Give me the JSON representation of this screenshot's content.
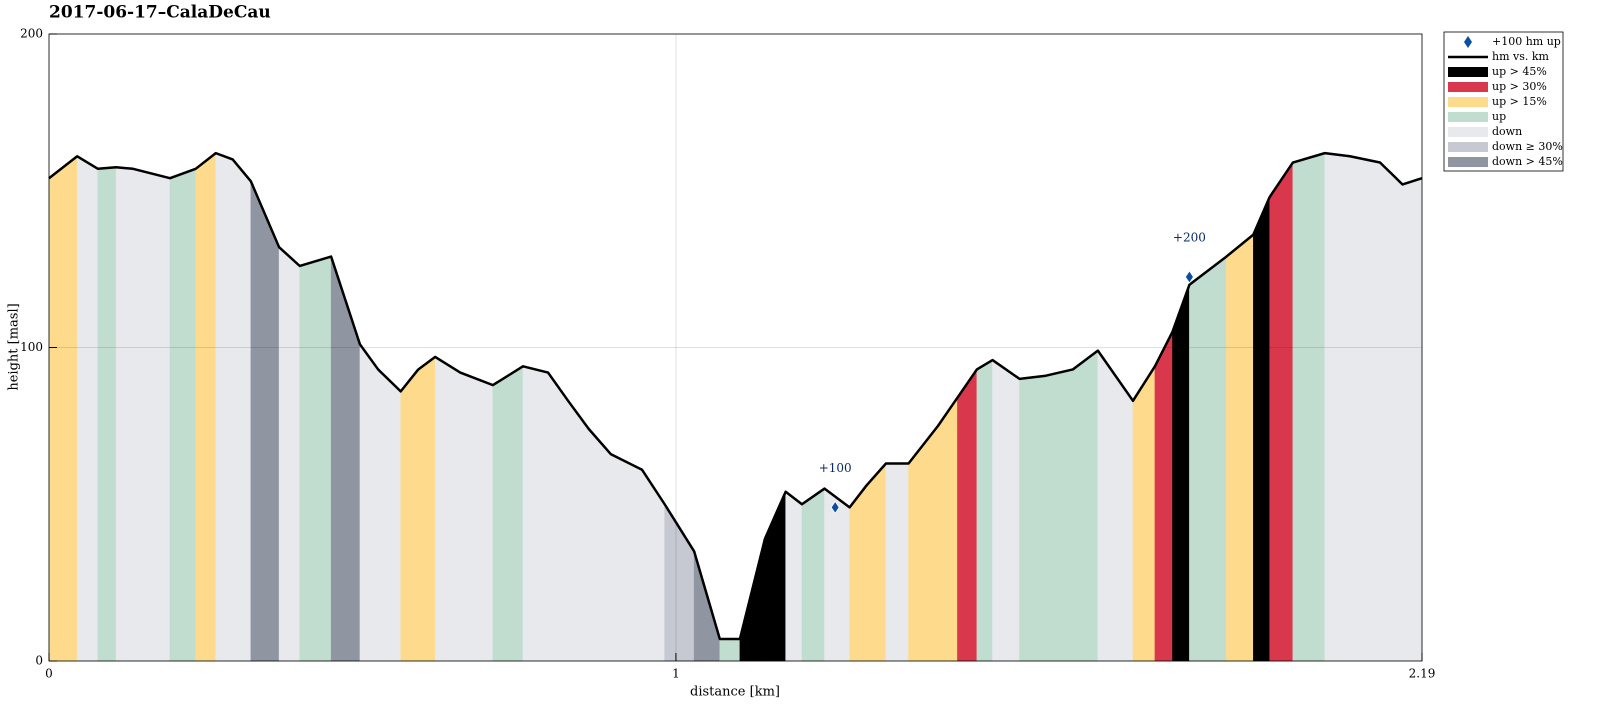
{
  "chart_data": {
    "type": "profile",
    "title": "2017-06-17–CalaDeCau",
    "xlabel": "distance [km]",
    "ylabel": "height [masl]",
    "xlim": [
      0,
      2.19
    ],
    "ylim": [
      0,
      200
    ],
    "xticks": [
      0,
      1,
      2.19
    ],
    "yticks": [
      0,
      100,
      200
    ],
    "grid": true,
    "legend_position": "outside-top-right",
    "x": [
      0,
      0.045,
      0.078,
      0.107,
      0.134,
      0.193,
      0.234,
      0.266,
      0.293,
      0.322,
      0.367,
      0.4,
      0.45,
      0.496,
      0.525,
      0.561,
      0.589,
      0.616,
      0.656,
      0.708,
      0.756,
      0.796,
      0.828,
      0.861,
      0.896,
      0.946,
      0.982,
      1.029,
      1.07,
      1.102,
      1.142,
      1.175,
      1.201,
      1.237,
      1.277,
      1.304,
      1.335,
      1.371,
      1.418,
      1.449,
      1.48,
      1.505,
      1.548,
      1.59,
      1.633,
      1.673,
      1.729,
      1.764,
      1.792,
      1.819,
      1.878,
      1.921,
      1.947,
      1.984,
      2.035,
      2.075,
      2.123,
      2.159,
      2.19
    ],
    "y": [
      154,
      161,
      157,
      157.5,
      157,
      154,
      157,
      162,
      160,
      153,
      132,
      126,
      129,
      101,
      93,
      86,
      93,
      97,
      92,
      88,
      94,
      92,
      83,
      74,
      66,
      61,
      50,
      35,
      7,
      7,
      39,
      54,
      50,
      55,
      49,
      56,
      63,
      63,
      75,
      84,
      93,
      96,
      90,
      91,
      93,
      99,
      83,
      94,
      105,
      120,
      129,
      136,
      148,
      159,
      162,
      161,
      159,
      152,
      154
    ],
    "segment_class": [
      4,
      6,
      5,
      6,
      6,
      5,
      4,
      6,
      6,
      8,
      6,
      5,
      8,
      6,
      6,
      4,
      4,
      6,
      6,
      5,
      6,
      6,
      6,
      6,
      6,
      6,
      7,
      8,
      5,
      2,
      2,
      6,
      5,
      6,
      4,
      4,
      6,
      4,
      4,
      3,
      5,
      6,
      5,
      5,
      5,
      6,
      4,
      3,
      2,
      5,
      4,
      2,
      3,
      5,
      6,
      6,
      6,
      6
    ],
    "legend": [
      {
        "name": "+100 hm up",
        "kind": "marker",
        "color": "#0b4ea2"
      },
      {
        "name": "hm vs. km",
        "kind": "line",
        "color": "#000000"
      },
      {
        "name": "up > 45%",
        "kind": "fill",
        "color": "#000000"
      },
      {
        "name": "up > 30%",
        "kind": "fill",
        "color": "#d9384c"
      },
      {
        "name": "up > 15%",
        "kind": "fill",
        "color": "#fedb8c"
      },
      {
        "name": "up",
        "kind": "fill",
        "color": "#c1ddcf"
      },
      {
        "name": "down",
        "kind": "fill",
        "color": "#e8e9ed"
      },
      {
        "name": "down ≥ 30%",
        "kind": "fill",
        "color": "#c6c9d1"
      },
      {
        "name": "down > 45%",
        "kind": "fill",
        "color": "#8f95a1"
      }
    ],
    "markers": [
      {
        "x": 1.254,
        "y": 49,
        "label": "+100"
      },
      {
        "x": 1.819,
        "y": 122.5,
        "label": "+200"
      }
    ]
  }
}
